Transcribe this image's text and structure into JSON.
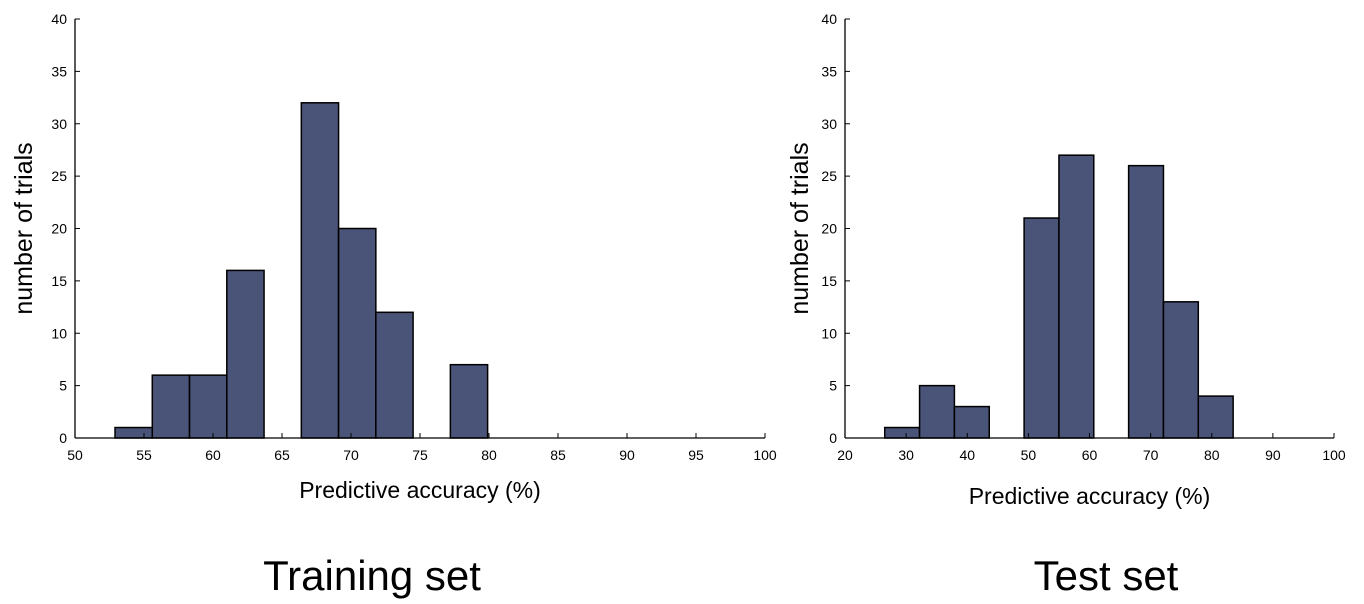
{
  "chart_data": [
    {
      "type": "bar",
      "xlabel": "Predictive accuracy (%)",
      "ylabel": "number of trials",
      "xlim": [
        50,
        100
      ],
      "ylim": [
        0,
        40
      ],
      "xticks": [
        50,
        55,
        60,
        65,
        70,
        75,
        80,
        85,
        90,
        95,
        100
      ],
      "yticks": [
        0,
        5,
        10,
        15,
        20,
        25,
        30,
        35,
        40
      ],
      "bar_fill": "#4a5378",
      "bar_stroke": "#000000",
      "bins": [
        {
          "start": 52.9,
          "end": 55.6,
          "value": 1
        },
        {
          "start": 55.6,
          "end": 58.3,
          "value": 6
        },
        {
          "start": 58.3,
          "end": 61.0,
          "value": 6
        },
        {
          "start": 61.0,
          "end": 63.7,
          "value": 16
        },
        {
          "start": 66.4,
          "end": 69.1,
          "value": 32
        },
        {
          "start": 69.1,
          "end": 71.8,
          "value": 20
        },
        {
          "start": 71.8,
          "end": 74.5,
          "value": 12
        },
        {
          "start": 77.2,
          "end": 79.9,
          "value": 7
        }
      ],
      "caption": "Training set"
    },
    {
      "type": "bar",
      "xlabel": "Predictive accuracy (%)",
      "ylabel": "number of trials",
      "xlim": [
        20,
        100
      ],
      "ylim": [
        0,
        40
      ],
      "xticks": [
        20,
        30,
        40,
        50,
        60,
        70,
        80,
        90,
        100
      ],
      "yticks": [
        0,
        5,
        10,
        15,
        20,
        25,
        30,
        35,
        40
      ],
      "bar_fill": "#4a5378",
      "bar_stroke": "#000000",
      "bins": [
        {
          "start": 26.5,
          "end": 32.2,
          "value": 1
        },
        {
          "start": 32.2,
          "end": 37.9,
          "value": 5
        },
        {
          "start": 37.9,
          "end": 43.6,
          "value": 3
        },
        {
          "start": 49.3,
          "end": 55.0,
          "value": 21
        },
        {
          "start": 55.0,
          "end": 60.7,
          "value": 27
        },
        {
          "start": 66.4,
          "end": 72.1,
          "value": 26
        },
        {
          "start": 72.1,
          "end": 77.8,
          "value": 13
        },
        {
          "start": 77.8,
          "end": 83.5,
          "value": 4
        }
      ],
      "caption": "Test set"
    }
  ]
}
